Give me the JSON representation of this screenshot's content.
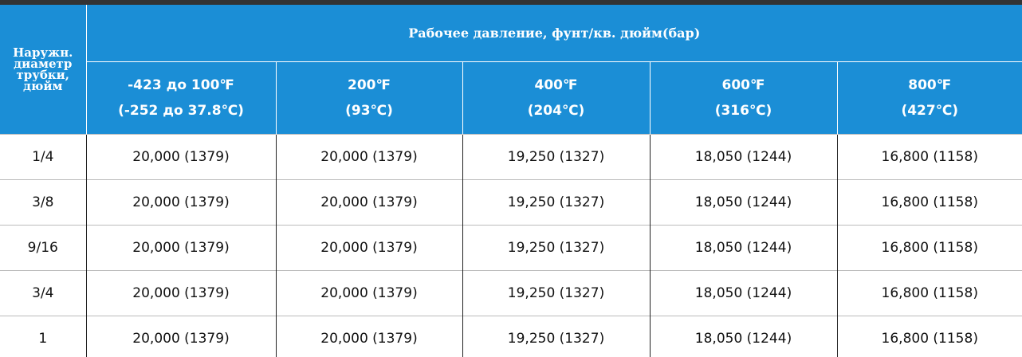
{
  "table": {
    "row_header": "Наружн. диаметр трубки, дюйм",
    "group_header": "Рабочее давление, фунт/кв. дюйм(бар)",
    "columns": [
      [
        "-423 до 100℉",
        "(-252 до 37.8℃)"
      ],
      [
        "200℉",
        "(93℃)"
      ],
      [
        "400℉",
        "(204℃)"
      ],
      [
        "600℉",
        "(316℃)"
      ],
      [
        "800℉",
        "(427℃)"
      ]
    ],
    "rows": [
      [
        "1/4",
        "20,000 (1379)",
        "20,000 (1379)",
        "19,250 (1327)",
        "18,050 (1244)",
        "16,800 (1158)"
      ],
      [
        "3/8",
        "20,000 (1379)",
        "20,000 (1379)",
        "19,250 (1327)",
        "18,050 (1244)",
        "16,800 (1158)"
      ],
      [
        "9/16",
        "20,000 (1379)",
        "20,000 (1379)",
        "19,250 (1327)",
        "18,050 (1244)",
        "16,800 (1158)"
      ],
      [
        "3/4",
        "20,000 (1379)",
        "20,000 (1379)",
        "19,250 (1327)",
        "18,050 (1244)",
        "16,800 (1158)"
      ],
      [
        "1",
        "20,000 (1379)",
        "20,000 (1379)",
        "19,250 (1327)",
        "18,050 (1244)",
        "16,800 (1158)"
      ]
    ]
  }
}
